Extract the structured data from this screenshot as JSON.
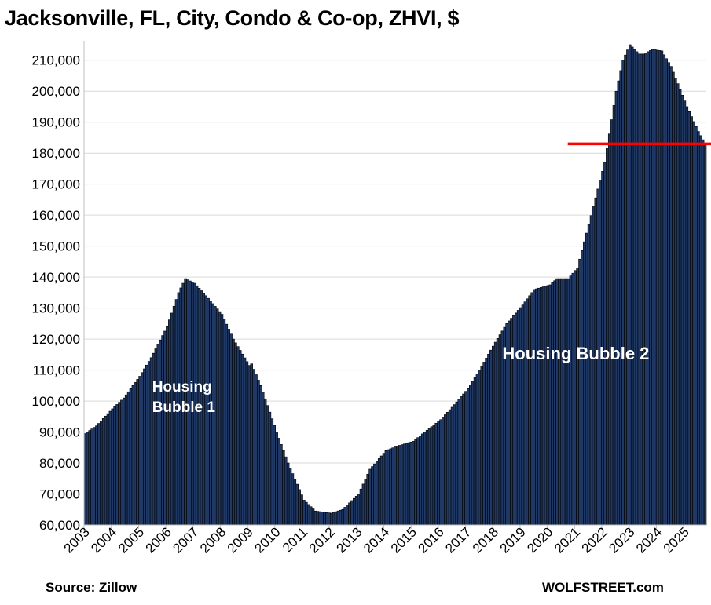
{
  "chart_data": {
    "type": "bar",
    "title": "Jacksonville, FL, City, Condo & Co-op, ZHVI, $",
    "xlabel": "",
    "ylabel": "",
    "ylim": [
      60000,
      215000
    ],
    "yticks": [
      60000,
      70000,
      80000,
      90000,
      100000,
      110000,
      120000,
      130000,
      140000,
      150000,
      160000,
      170000,
      180000,
      190000,
      200000,
      210000
    ],
    "ytick_labels": [
      "60,000",
      "70,000",
      "80,000",
      "90,000",
      "100,000",
      "110,000",
      "120,000",
      "130,000",
      "140,000",
      "150,000",
      "160,000",
      "170,000",
      "180,000",
      "190,000",
      "200,000",
      "210,000"
    ],
    "xtick_labels": [
      "2003",
      "2004",
      "2005",
      "2006",
      "2007",
      "2008",
      "2009",
      "2010",
      "2011",
      "2012",
      "2013",
      "2014",
      "2015",
      "2016",
      "2017",
      "2018",
      "2019",
      "2020",
      "2021",
      "2022",
      "2023",
      "2024",
      "2025"
    ],
    "grid": true,
    "bar_color": "#1f3864",
    "bar_edge_color": "#000000",
    "reference_line": {
      "value": 183000,
      "from_year": 2020.75,
      "color": "#ff0000"
    },
    "annotations": [
      {
        "text_lines": [
          "Housing",
          "Bubble 1"
        ],
        "year": 2005.5,
        "value": 103000,
        "color": "#ffffff"
      },
      {
        "text_lines": [
          "Housing Bubble 2"
        ],
        "year": 2018.35,
        "value": 113500,
        "color": "#ffffff"
      }
    ],
    "series": [
      {
        "start": "2003-01",
        "frequency": "monthly",
        "anchors": [
          [
            "2003-01",
            89500
          ],
          [
            "2003-06",
            92000
          ],
          [
            "2004-01",
            97500
          ],
          [
            "2004-06",
            101000
          ],
          [
            "2005-01",
            108000
          ],
          [
            "2005-06",
            114000
          ],
          [
            "2006-01",
            124000
          ],
          [
            "2006-06",
            135000
          ],
          [
            "2006-09",
            139500
          ],
          [
            "2007-01",
            138000
          ],
          [
            "2007-06",
            134000
          ],
          [
            "2008-01",
            128000
          ],
          [
            "2008-06",
            120000
          ],
          [
            "2009-01",
            111500
          ],
          [
            "2009-02",
            112000
          ],
          [
            "2009-06",
            105000
          ],
          [
            "2010-01",
            90000
          ],
          [
            "2010-06",
            80000
          ],
          [
            "2011-01",
            68000
          ],
          [
            "2011-06",
            64500
          ],
          [
            "2012-01",
            63800
          ],
          [
            "2012-06",
            65000
          ],
          [
            "2013-01",
            70000
          ],
          [
            "2013-06",
            78000
          ],
          [
            "2014-01",
            84000
          ],
          [
            "2014-06",
            85500
          ],
          [
            "2015-01",
            87000
          ],
          [
            "2015-06",
            90000
          ],
          [
            "2016-01",
            94000
          ],
          [
            "2016-06",
            98000
          ],
          [
            "2017-01",
            104000
          ],
          [
            "2017-06",
            110000
          ],
          [
            "2018-01",
            119000
          ],
          [
            "2018-06",
            125000
          ],
          [
            "2019-01",
            131000
          ],
          [
            "2019-06",
            136000
          ],
          [
            "2020-01",
            137500
          ],
          [
            "2020-04",
            139500
          ],
          [
            "2020-09",
            139500
          ],
          [
            "2021-01",
            143000
          ],
          [
            "2021-06",
            157000
          ],
          [
            "2022-01",
            177000
          ],
          [
            "2022-06",
            200000
          ],
          [
            "2022-09",
            210000
          ],
          [
            "2022-12",
            215000
          ],
          [
            "2023-04",
            212000
          ],
          [
            "2023-06",
            212000
          ],
          [
            "2023-10",
            213500
          ],
          [
            "2024-02",
            213000
          ],
          [
            "2024-06",
            208000
          ],
          [
            "2025-01",
            195000
          ],
          [
            "2025-06",
            187000
          ],
          [
            "2025-09",
            183000
          ]
        ]
      }
    ]
  },
  "footer": {
    "source": "Source: Zillow",
    "brand": "WOLFSTREET.com"
  }
}
